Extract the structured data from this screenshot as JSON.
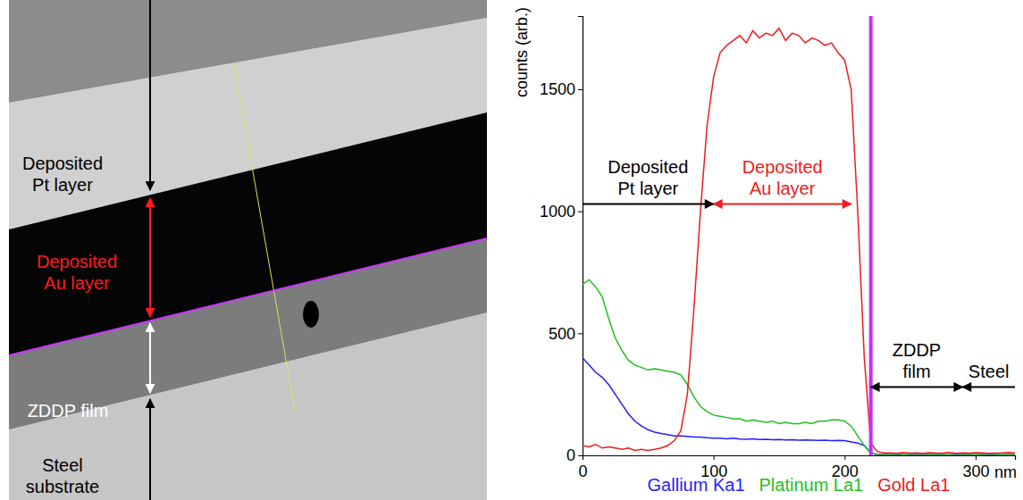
{
  "image_panel": {
    "labels": [
      {
        "lines": [
          "Deposited",
          "Pt layer"
        ],
        "color": "#000000"
      },
      {
        "lines": [
          "Deposited",
          "Au layer"
        ],
        "color": "#ff1a1a"
      },
      {
        "lines": [
          "ZDDP film"
        ],
        "color": "#ffffff"
      },
      {
        "lines": [
          "Steel",
          "substrate"
        ],
        "color": "#000000"
      }
    ]
  },
  "chart_data": {
    "type": "line",
    "x_label": "nm",
    "y_label": "counts (arb.)",
    "x": [
      0,
      5,
      10,
      15,
      20,
      25,
      30,
      35,
      40,
      45,
      50,
      55,
      60,
      65,
      70,
      75,
      80,
      85,
      90,
      95,
      100,
      105,
      110,
      115,
      120,
      125,
      130,
      135,
      140,
      145,
      150,
      155,
      160,
      165,
      170,
      175,
      180,
      185,
      190,
      195,
      200,
      205,
      210,
      215,
      220,
      225,
      230,
      235,
      240,
      245,
      250,
      255,
      260,
      265,
      270,
      275,
      280,
      285,
      290,
      295,
      300,
      305,
      310,
      315,
      320,
      325,
      330
    ],
    "series": [
      {
        "name": "Gallium Ka1",
        "color": "#1f1fff",
        "values": [
          400,
          370,
          340,
          320,
          290,
          250,
          210,
          170,
          140,
          120,
          105,
          95,
          90,
          85,
          80,
          80,
          78,
          75,
          75,
          72,
          70,
          70,
          68,
          70,
          67,
          66,
          68,
          65,
          66,
          64,
          65,
          63,
          64,
          62,
          63,
          62,
          61,
          62,
          60,
          61,
          60,
          55,
          50,
          40,
          10,
          2,
          0,
          0,
          0,
          0,
          0,
          0,
          0,
          0,
          0,
          0,
          0,
          0,
          0,
          0,
          0,
          0,
          0,
          0,
          0,
          0,
          0
        ]
      },
      {
        "name": "Platinum La1",
        "color": "#1fbf1f",
        "values": [
          700,
          720,
          690,
          650,
          560,
          480,
          430,
          390,
          370,
          360,
          350,
          355,
          350,
          345,
          340,
          330,
          290,
          240,
          200,
          180,
          165,
          160,
          155,
          150,
          150,
          140,
          145,
          140,
          135,
          140,
          130,
          135,
          130,
          130,
          135,
          130,
          140,
          140,
          145,
          145,
          140,
          120,
          80,
          40,
          10,
          5,
          5,
          5,
          6,
          4,
          5,
          5,
          6,
          4,
          5,
          5,
          4,
          6,
          5,
          5,
          4,
          5,
          6,
          5,
          4,
          5,
          5
        ]
      },
      {
        "name": "Gold La1",
        "color": "#ee1c1c",
        "values": [
          40,
          35,
          45,
          30,
          35,
          30,
          25,
          30,
          20,
          25,
          20,
          25,
          30,
          40,
          60,
          100,
          250,
          600,
          1000,
          1350,
          1550,
          1650,
          1680,
          1700,
          1720,
          1690,
          1740,
          1710,
          1730,
          1720,
          1750,
          1700,
          1730,
          1720,
          1690,
          1710,
          1700,
          1680,
          1690,
          1650,
          1620,
          1500,
          1000,
          400,
          50,
          15,
          10,
          10,
          8,
          12,
          9,
          10,
          8,
          11,
          9,
          10,
          12,
          8,
          10,
          9,
          11,
          10,
          8,
          9,
          10,
          12,
          10
        ]
      }
    ],
    "xlim": [
      0,
      330
    ],
    "xticks": [
      0,
      100,
      200,
      300
    ],
    "ylim": [
      0,
      1800
    ],
    "yticks": [
      0,
      500,
      1000,
      1500
    ],
    "grid": false,
    "legend": "bottom",
    "annotations": [
      {
        "type": "vline",
        "x": 220,
        "color": "#c030ff"
      },
      {
        "type": "arrow",
        "text_lines": [
          "Deposited",
          "Pt layer"
        ],
        "x": [
          0,
          100
        ],
        "y": 1030,
        "color": "#000000",
        "marker": "end"
      },
      {
        "type": "arrow",
        "text_lines": [
          "Deposited",
          "Au layer"
        ],
        "x": [
          100,
          205
        ],
        "y": 1030,
        "color": "#ee1c1c",
        "marker": "both"
      },
      {
        "type": "arrow",
        "text_lines": [
          "ZDDP",
          "film"
        ],
        "x": [
          220,
          290
        ],
        "y": 280,
        "color": "#000000",
        "marker": "both"
      },
      {
        "type": "arrow",
        "text_lines": [
          "Steel"
        ],
        "x": [
          290,
          330
        ],
        "y": 280,
        "color": "#000000",
        "marker": "start"
      }
    ]
  }
}
